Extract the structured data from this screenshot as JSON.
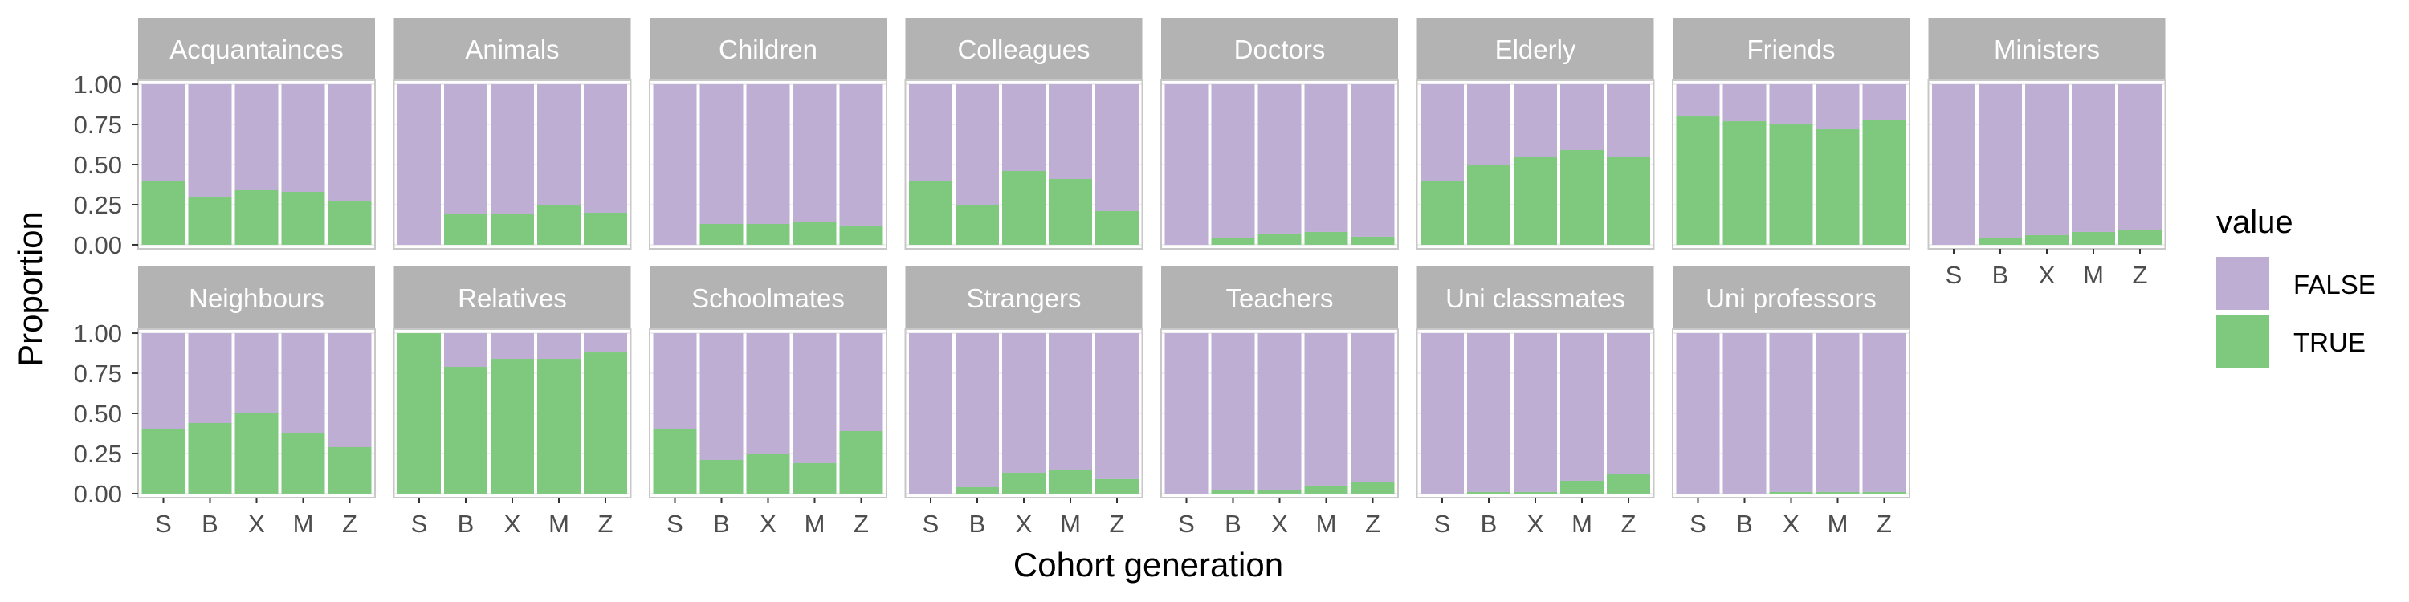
{
  "chart_data": {
    "type": "bar",
    "stacked": true,
    "facet": "wrap",
    "xlabel": "Cohort generation",
    "ylabel": "Proportion",
    "ylim": [
      0,
      1
    ],
    "yticks": [
      "0.00",
      "0.25",
      "0.50",
      "0.75",
      "1.00"
    ],
    "categories": [
      "S",
      "B",
      "X",
      "M",
      "Z"
    ],
    "legend": {
      "title": "value",
      "position": "right",
      "entries": [
        {
          "label": "FALSE",
          "color": "#beaed4"
        },
        {
          "label": "TRUE",
          "color": "#7fc97f"
        }
      ]
    },
    "colors": {
      "FALSE": "#beaed4",
      "TRUE": "#7fc97f",
      "strip": "#b3b3b3",
      "panel_border": "#c8c8c8",
      "grid": "#ebebeb"
    },
    "facets": [
      {
        "name": "Acquantainces",
        "true": [
          0.4,
          0.3,
          0.34,
          0.33,
          0.27
        ]
      },
      {
        "name": "Animals",
        "true": [
          0.0,
          0.19,
          0.19,
          0.25,
          0.2
        ]
      },
      {
        "name": "Children",
        "true": [
          0.0,
          0.13,
          0.13,
          0.14,
          0.12
        ]
      },
      {
        "name": "Colleagues",
        "true": [
          0.4,
          0.25,
          0.46,
          0.41,
          0.21
        ]
      },
      {
        "name": "Doctors",
        "true": [
          0.0,
          0.04,
          0.07,
          0.08,
          0.05
        ]
      },
      {
        "name": "Elderly",
        "true": [
          0.4,
          0.5,
          0.55,
          0.59,
          0.55
        ]
      },
      {
        "name": "Friends",
        "true": [
          0.8,
          0.77,
          0.75,
          0.72,
          0.78
        ]
      },
      {
        "name": "Ministers",
        "true": [
          0.0,
          0.04,
          0.06,
          0.08,
          0.09
        ]
      },
      {
        "name": "Neighbours",
        "true": [
          0.4,
          0.44,
          0.5,
          0.38,
          0.29
        ]
      },
      {
        "name": "Relatives",
        "true": [
          1.0,
          0.79,
          0.84,
          0.84,
          0.88
        ]
      },
      {
        "name": "Schoolmates",
        "true": [
          0.4,
          0.21,
          0.25,
          0.19,
          0.39
        ]
      },
      {
        "name": "Strangers",
        "true": [
          0.0,
          0.04,
          0.13,
          0.15,
          0.09
        ]
      },
      {
        "name": "Teachers",
        "true": [
          0.0,
          0.02,
          0.02,
          0.05,
          0.07
        ]
      },
      {
        "name": "Uni classmates",
        "true": [
          0.0,
          0.01,
          0.01,
          0.08,
          0.12
        ]
      },
      {
        "name": "Uni professors",
        "true": [
          0.0,
          0.0,
          0.01,
          0.01,
          0.01
        ]
      }
    ]
  }
}
